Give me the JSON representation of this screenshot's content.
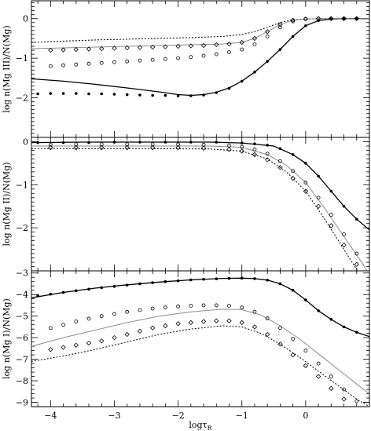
{
  "chart_data": [
    {
      "type": "line",
      "ylabel": "log n(Mg III)/N(Mg)",
      "xlim": [
        -4.3,
        1.0
      ],
      "ylim": [
        -3.0,
        0.45
      ],
      "yticks": [
        0,
        -1,
        -2
      ],
      "series": [
        {
          "style": "solid-black",
          "x": [
            -4.3,
            -3.8,
            -3.3,
            -2.8,
            -2.3,
            -2.0,
            -1.8,
            -1.6,
            -1.4,
            -1.2,
            -1.0,
            -0.8,
            -0.6,
            -0.4,
            -0.2,
            0.0,
            0.2,
            0.4,
            0.6,
            0.8,
            1.0
          ],
          "y": [
            -1.52,
            -1.58,
            -1.66,
            -1.75,
            -1.85,
            -1.92,
            -1.94,
            -1.92,
            -1.86,
            -1.75,
            -1.58,
            -1.35,
            -1.08,
            -0.78,
            -0.45,
            -0.18,
            -0.05,
            -0.01,
            0.0,
            0.0,
            0.0
          ]
        },
        {
          "style": "dotted-black",
          "x": [
            -4.3,
            -3.8,
            -3.3,
            -2.8,
            -2.3,
            -1.8,
            -1.3,
            -1.0,
            -0.8,
            -0.6,
            -0.4,
            -0.2,
            0.0,
            0.2,
            0.4,
            0.6,
            0.8,
            1.0
          ],
          "y": [
            -0.6,
            -0.57,
            -0.54,
            -0.52,
            -0.5,
            -0.48,
            -0.45,
            -0.4,
            -0.33,
            -0.22,
            -0.1,
            -0.03,
            -0.01,
            0.0,
            0.0,
            0.0,
            0.0,
            0.0
          ]
        },
        {
          "style": "solid-gray",
          "x": [
            -4.3,
            -3.8,
            -3.3,
            -2.8,
            -2.3,
            -1.8,
            -1.3,
            -1.0,
            -0.8,
            -0.6,
            -0.4,
            -0.2,
            0.0,
            0.2,
            0.4,
            0.6,
            0.8,
            1.0
          ],
          "y": [
            -0.76,
            -0.74,
            -0.72,
            -0.7,
            -0.68,
            -0.66,
            -0.64,
            -0.6,
            -0.5,
            -0.33,
            -0.15,
            -0.04,
            -0.01,
            0.0,
            0.0,
            0.0,
            0.0,
            0.0
          ]
        },
        {
          "style": "filled-dots",
          "x": [
            -4.2,
            -4.0,
            -3.8,
            -3.6,
            -3.4,
            -3.2,
            -3.0,
            -2.8,
            -2.6,
            -2.4,
            -2.2,
            -2.0,
            -1.8,
            -1.6,
            -1.4,
            -1.2,
            -1.0,
            -0.8,
            -0.6,
            -0.4,
            -0.2,
            0.0,
            0.2,
            0.4,
            0.6,
            0.8
          ],
          "y": [
            -1.9,
            -1.89,
            -1.89,
            -1.89,
            -1.9,
            -1.9,
            -1.91,
            -1.92,
            -1.93,
            -1.94,
            -1.94,
            -1.95,
            -1.95,
            -1.93,
            -1.87,
            -1.76,
            -1.58,
            -1.35,
            -1.08,
            -0.78,
            -0.45,
            -0.18,
            -0.05,
            -0.01,
            0.0,
            0.0
          ]
        },
        {
          "style": "diamonds",
          "x": [
            -4.0,
            -3.8,
            -3.6,
            -3.4,
            -3.2,
            -3.0,
            -2.8,
            -2.6,
            -2.4,
            -2.2,
            -2.0,
            -1.8,
            -1.6,
            -1.4,
            -1.2,
            -1.0,
            -0.8,
            -0.6,
            -0.4,
            -0.2,
            0.0,
            0.2,
            0.4,
            0.6,
            0.8
          ],
          "y": [
            -0.8,
            -0.79,
            -0.78,
            -0.77,
            -0.76,
            -0.75,
            -0.74,
            -0.73,
            -0.72,
            -0.71,
            -0.7,
            -0.69,
            -0.68,
            -0.66,
            -0.64,
            -0.6,
            -0.5,
            -0.33,
            -0.15,
            -0.04,
            -0.01,
            0.0,
            0.0,
            0.0,
            0.0
          ]
        },
        {
          "style": "open-circles",
          "x": [
            -4.0,
            -3.8,
            -3.6,
            -3.4,
            -3.2,
            -3.0,
            -2.8,
            -2.6,
            -2.4,
            -2.2,
            -2.0,
            -1.8,
            -1.6,
            -1.4,
            -1.2,
            -1.0,
            -0.8,
            -0.6,
            -0.4,
            -0.2,
            0.0,
            0.2,
            0.4,
            0.6,
            0.8
          ],
          "y": [
            -1.2,
            -1.18,
            -1.16,
            -1.14,
            -1.12,
            -1.1,
            -1.08,
            -1.06,
            -1.04,
            -1.02,
            -1.0,
            -0.97,
            -0.94,
            -0.9,
            -0.85,
            -0.78,
            -0.65,
            -0.45,
            -0.22,
            -0.07,
            -0.01,
            0.0,
            0.0,
            0.0,
            0.0
          ]
        }
      ]
    },
    {
      "type": "line",
      "ylabel": "log n(Mg II)/N(Mg)",
      "xlim": [
        -4.3,
        1.0
      ],
      "ylim": [
        -3.0,
        0.1
      ],
      "yticks": [
        0,
        -1,
        -2
      ],
      "series": [
        {
          "style": "solid-black",
          "x": [
            -4.3,
            -3.5,
            -2.5,
            -1.5,
            -1.0,
            -0.5,
            -0.2,
            0.0,
            0.2,
            0.4,
            0.6,
            0.8,
            1.0
          ],
          "y": [
            -0.02,
            -0.01,
            -0.01,
            -0.01,
            -0.03,
            -0.1,
            -0.3,
            -0.5,
            -0.8,
            -1.15,
            -1.5,
            -1.8,
            -2.05
          ]
        },
        {
          "style": "dotted-black",
          "x": [
            -4.3,
            -3.5,
            -2.5,
            -1.5,
            -1.0,
            -0.6,
            -0.3,
            0.0,
            0.3,
            0.6,
            0.9,
            1.0
          ],
          "y": [
            -0.16,
            -0.16,
            -0.16,
            -0.17,
            -0.22,
            -0.4,
            -0.7,
            -1.15,
            -1.8,
            -2.5,
            -3.2,
            -3.4
          ]
        },
        {
          "style": "solid-gray",
          "x": [
            -4.3,
            -3.5,
            -2.5,
            -1.5,
            -1.0,
            -0.6,
            -0.3,
            0.0,
            0.3,
            0.6,
            0.9,
            1.0
          ],
          "y": [
            -0.1,
            -0.1,
            -0.1,
            -0.1,
            -0.13,
            -0.3,
            -0.55,
            -0.95,
            -1.55,
            -2.2,
            -2.85,
            -3.1
          ]
        },
        {
          "style": "filled-dots",
          "x": [
            -4.2,
            -3.8,
            -3.4,
            -3.0,
            -2.6,
            -2.2,
            -1.8,
            -1.4,
            -1.0,
            -0.8,
            -0.6,
            -0.4,
            -0.2,
            0.0,
            0.2,
            0.4,
            0.6,
            0.8
          ],
          "y": [
            -0.02,
            -0.02,
            -0.02,
            -0.01,
            -0.01,
            -0.01,
            -0.01,
            -0.01,
            -0.03,
            -0.05,
            -0.08,
            -0.16,
            -0.3,
            -0.5,
            -0.8,
            -1.15,
            -1.5,
            -1.8
          ]
        },
        {
          "style": "diamonds",
          "x": [
            -4.0,
            -3.6,
            -3.2,
            -2.8,
            -2.4,
            -2.0,
            -1.6,
            -1.2,
            -1.0,
            -0.8,
            -0.6,
            -0.4,
            -0.2,
            0.0,
            0.2,
            0.4,
            0.6,
            0.8
          ],
          "y": [
            -0.14,
            -0.14,
            -0.14,
            -0.14,
            -0.14,
            -0.14,
            -0.15,
            -0.18,
            -0.22,
            -0.3,
            -0.42,
            -0.6,
            -0.85,
            -1.15,
            -1.5,
            -1.95,
            -2.4,
            -2.85
          ]
        },
        {
          "style": "open-circles",
          "x": [
            -4.0,
            -3.6,
            -3.2,
            -2.8,
            -2.4,
            -2.0,
            -1.6,
            -1.2,
            -1.0,
            -0.8,
            -0.6,
            -0.4,
            -0.2,
            0.0,
            0.2,
            0.4,
            0.6,
            0.8
          ],
          "y": [
            -0.06,
            -0.06,
            -0.06,
            -0.06,
            -0.06,
            -0.06,
            -0.07,
            -0.09,
            -0.12,
            -0.18,
            -0.28,
            -0.45,
            -0.68,
            -0.95,
            -1.3,
            -1.7,
            -2.15,
            -2.6
          ]
        }
      ]
    },
    {
      "type": "line",
      "ylabel": "log n(Mg I)/N(Mg)",
      "xlabel": "logτR",
      "xlim": [
        -4.3,
        1.0
      ],
      "ylim": [
        -9.2,
        -2.9
      ],
      "yticks": [
        -3,
        -4,
        -5,
        -6,
        -7,
        -8,
        -9
      ],
      "xticks": [
        -4,
        -3,
        -2,
        -1,
        0
      ],
      "series": [
        {
          "style": "solid-black",
          "x": [
            -4.3,
            -3.8,
            -3.3,
            -2.8,
            -2.3,
            -1.8,
            -1.3,
            -1.0,
            -0.8,
            -0.6,
            -0.4,
            -0.2,
            0.0,
            0.2,
            0.4,
            0.6,
            0.8,
            1.0
          ],
          "y": [
            -4.15,
            -3.9,
            -3.7,
            -3.55,
            -3.42,
            -3.32,
            -3.25,
            -3.24,
            -3.26,
            -3.33,
            -3.5,
            -3.8,
            -4.25,
            -4.75,
            -5.15,
            -5.5,
            -5.75,
            -5.95
          ]
        },
        {
          "style": "dotted-black",
          "x": [
            -4.3,
            -3.8,
            -3.3,
            -2.8,
            -2.3,
            -1.8,
            -1.3,
            -1.0,
            -0.7,
            -0.4,
            -0.1,
            0.2,
            0.5,
            0.8,
            1.0
          ],
          "y": [
            -7.1,
            -6.85,
            -6.55,
            -6.2,
            -5.85,
            -5.6,
            -5.45,
            -5.5,
            -5.8,
            -6.3,
            -6.9,
            -7.55,
            -8.2,
            -8.85,
            -9.2
          ]
        },
        {
          "style": "solid-gray",
          "x": [
            -4.3,
            -3.8,
            -3.3,
            -2.8,
            -2.3,
            -1.8,
            -1.3,
            -1.0,
            -0.7,
            -0.4,
            -0.1,
            0.2,
            0.5,
            0.8,
            1.0
          ],
          "y": [
            -6.4,
            -6.0,
            -5.65,
            -5.3,
            -5.0,
            -4.8,
            -4.68,
            -4.7,
            -4.95,
            -5.45,
            -6.05,
            -6.75,
            -7.45,
            -8.15,
            -8.6
          ]
        },
        {
          "style": "filled-dots",
          "x": [
            -4.2,
            -4.0,
            -3.8,
            -3.6,
            -3.4,
            -3.2,
            -3.0,
            -2.8,
            -2.6,
            -2.4,
            -2.2,
            -2.0,
            -1.8,
            -1.6,
            -1.4,
            -1.2,
            -1.0,
            -0.8,
            -0.6,
            -0.4,
            -0.2,
            0.0,
            0.2,
            0.4,
            0.6,
            0.8
          ],
          "y": [
            -4.05,
            -3.98,
            -3.9,
            -3.82,
            -3.75,
            -3.68,
            -3.62,
            -3.56,
            -3.5,
            -3.45,
            -3.4,
            -3.36,
            -3.32,
            -3.29,
            -3.27,
            -3.25,
            -3.24,
            -3.26,
            -3.33,
            -3.5,
            -3.8,
            -4.25,
            -4.75,
            -5.15,
            -5.5,
            -5.75
          ]
        },
        {
          "style": "diamonds",
          "x": [
            -4.0,
            -3.8,
            -3.6,
            -3.4,
            -3.2,
            -3.0,
            -2.8,
            -2.6,
            -2.4,
            -2.2,
            -2.0,
            -1.8,
            -1.6,
            -1.4,
            -1.2,
            -1.0,
            -0.8,
            -0.6,
            -0.4,
            -0.2,
            0.0,
            0.2,
            0.4,
            0.6,
            0.8
          ],
          "y": [
            -6.55,
            -6.45,
            -6.35,
            -6.25,
            -6.15,
            -6.0,
            -5.85,
            -5.7,
            -5.55,
            -5.45,
            -5.35,
            -5.3,
            -5.25,
            -5.22,
            -5.22,
            -5.3,
            -5.5,
            -5.85,
            -6.3,
            -6.8,
            -7.3,
            -7.8,
            -8.35,
            -8.85,
            -9.3
          ]
        },
        {
          "style": "open-circles",
          "x": [
            -4.0,
            -3.8,
            -3.6,
            -3.4,
            -3.2,
            -3.0,
            -2.8,
            -2.6,
            -2.4,
            -2.2,
            -2.0,
            -1.8,
            -1.6,
            -1.4,
            -1.2,
            -1.0,
            -0.8,
            -0.6,
            -0.4,
            -0.2,
            0.0,
            0.2,
            0.4,
            0.6,
            0.8
          ],
          "y": [
            -5.55,
            -5.4,
            -5.25,
            -5.12,
            -5.0,
            -4.9,
            -4.8,
            -4.72,
            -4.65,
            -4.6,
            -4.55,
            -4.52,
            -4.5,
            -4.5,
            -4.52,
            -4.6,
            -4.8,
            -5.1,
            -5.55,
            -6.05,
            -6.6,
            -7.2,
            -7.8,
            -8.4,
            -8.95
          ]
        }
      ]
    }
  ]
}
